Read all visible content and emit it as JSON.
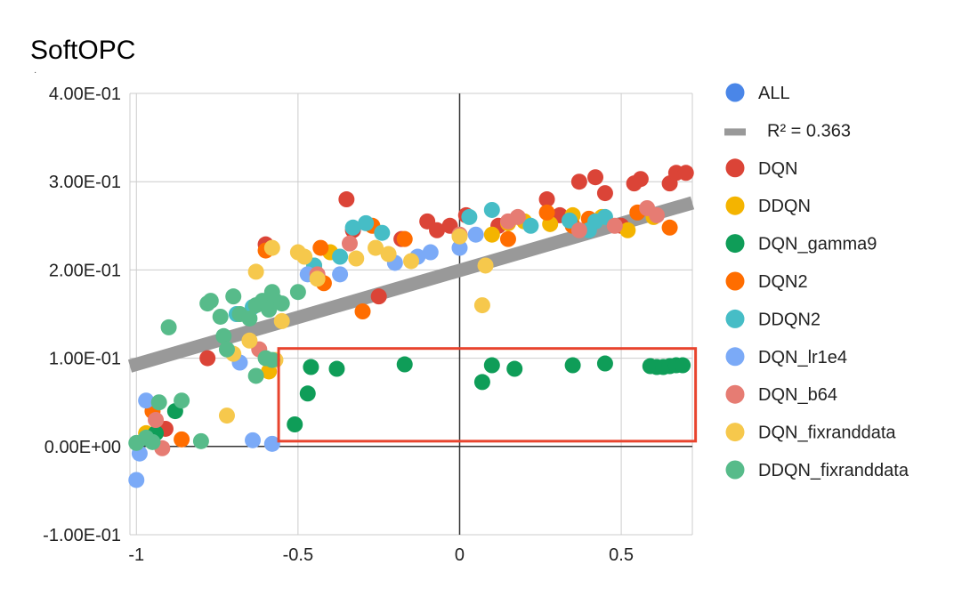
{
  "chart_data": {
    "type": "scatter",
    "title": "SoftOPC",
    "xlabel": "",
    "ylabel": "",
    "xlim": [
      -1.02,
      0.72
    ],
    "ylim": [
      -0.1,
      0.4
    ],
    "x_ticks": [
      -1,
      -0.5,
      0,
      0.5
    ],
    "x_tick_labels": [
      "-1",
      "-0.5",
      "0",
      "0.5"
    ],
    "y_ticks": [
      -0.1,
      0.0,
      0.1,
      0.2,
      0.3,
      0.4
    ],
    "y_tick_labels": [
      "-1.00E-01",
      "0.00E+00",
      "1.00E-01",
      "2.00E-01",
      "3.00E-01",
      "4.00E-01"
    ],
    "grid": true,
    "legend_position": "right",
    "trendline": {
      "label": "R² = 0.363",
      "color": "#999999",
      "x": [
        -1.02,
        0.72
      ],
      "y": [
        0.091,
        0.276
      ]
    },
    "highlight_box": {
      "color": "#e8442e",
      "x_range": [
        -0.56,
        0.73
      ],
      "y_range": [
        0.006,
        0.111
      ]
    },
    "series": [
      {
        "name": "ALL",
        "color": "#4a86e8",
        "points": []
      },
      {
        "name": "DQN",
        "color": "#db4437",
        "points": [
          [
            -0.35,
            0.28
          ],
          [
            -0.33,
            0.245
          ],
          [
            -0.18,
            0.235
          ],
          [
            -0.07,
            0.245
          ],
          [
            -0.03,
            0.25
          ],
          [
            0.02,
            0.262
          ],
          [
            0.12,
            0.25
          ],
          [
            0.27,
            0.28
          ],
          [
            0.31,
            0.262
          ],
          [
            0.37,
            0.3
          ],
          [
            0.42,
            0.305
          ],
          [
            0.45,
            0.287
          ],
          [
            0.5,
            0.25
          ],
          [
            0.54,
            0.298
          ],
          [
            0.56,
            0.303
          ],
          [
            0.65,
            0.298
          ],
          [
            0.67,
            0.31
          ],
          [
            0.7,
            0.31
          ],
          [
            -0.6,
            0.229
          ],
          [
            -0.25,
            0.17
          ],
          [
            -0.78,
            0.1
          ],
          [
            -0.91,
            0.02
          ],
          [
            -0.1,
            0.255
          ]
        ]
      },
      {
        "name": "DDQN",
        "color": "#f4b400",
        "points": [
          [
            -0.59,
            0.085
          ],
          [
            -0.45,
            0.205
          ],
          [
            -0.4,
            0.22
          ],
          [
            0.1,
            0.24
          ],
          [
            0.15,
            0.253
          ],
          [
            0.2,
            0.255
          ],
          [
            0.28,
            0.252
          ],
          [
            0.35,
            0.262
          ],
          [
            0.44,
            0.26
          ],
          [
            0.52,
            0.245
          ],
          [
            0.6,
            0.26
          ],
          [
            -0.97,
            0.015
          ]
        ]
      },
      {
        "name": "DQN_gamma9",
        "color": "#0f9d58",
        "points": [
          [
            -0.51,
            0.025
          ],
          [
            -0.47,
            0.06
          ],
          [
            -0.46,
            0.09
          ],
          [
            -0.38,
            0.088
          ],
          [
            -0.17,
            0.093
          ],
          [
            0.07,
            0.073
          ],
          [
            0.1,
            0.092
          ],
          [
            0.17,
            0.088
          ],
          [
            0.35,
            0.092
          ],
          [
            0.45,
            0.094
          ],
          [
            0.59,
            0.091
          ],
          [
            0.61,
            0.09
          ],
          [
            0.63,
            0.09
          ],
          [
            0.65,
            0.091
          ],
          [
            0.67,
            0.092
          ],
          [
            0.69,
            0.092
          ],
          [
            -0.88,
            0.04
          ],
          [
            -0.94,
            0.015
          ],
          [
            -0.96,
            0.008
          ]
        ]
      },
      {
        "name": "DQN2",
        "color": "#ff6d00",
        "points": [
          [
            -0.6,
            0.222
          ],
          [
            -0.43,
            0.225
          ],
          [
            -0.3,
            0.153
          ],
          [
            -0.27,
            0.25
          ],
          [
            -0.17,
            0.235
          ],
          [
            0.15,
            0.235
          ],
          [
            0.27,
            0.265
          ],
          [
            0.35,
            0.25
          ],
          [
            0.4,
            0.258
          ],
          [
            0.55,
            0.265
          ],
          [
            0.65,
            0.248
          ],
          [
            -0.95,
            0.04
          ],
          [
            -0.86,
            0.008
          ],
          [
            -0.42,
            0.185
          ]
        ]
      },
      {
        "name": "DDQN2",
        "color": "#46bdc6",
        "points": [
          [
            -0.45,
            0.205
          ],
          [
            -0.37,
            0.215
          ],
          [
            -0.33,
            0.248
          ],
          [
            -0.29,
            0.253
          ],
          [
            -0.24,
            0.242
          ],
          [
            0.03,
            0.26
          ],
          [
            0.1,
            0.268
          ],
          [
            0.22,
            0.25
          ],
          [
            0.34,
            0.256
          ],
          [
            0.4,
            0.245
          ],
          [
            0.42,
            0.255
          ],
          [
            0.45,
            0.26
          ],
          [
            -0.69,
            0.15
          ],
          [
            -0.64,
            0.158
          ]
        ]
      },
      {
        "name": "DQN_lr1e4",
        "color": "#7baaf7",
        "points": [
          [
            -1.0,
            -0.038
          ],
          [
            -0.99,
            -0.008
          ],
          [
            -0.97,
            0.052
          ],
          [
            -0.64,
            0.007
          ],
          [
            -0.58,
            0.003
          ],
          [
            -0.68,
            0.095
          ],
          [
            -0.2,
            0.208
          ],
          [
            -0.13,
            0.215
          ],
          [
            -0.09,
            0.22
          ],
          [
            0.0,
            0.225
          ],
          [
            0.05,
            0.24
          ],
          [
            -0.37,
            0.195
          ],
          [
            -0.47,
            0.195
          ]
        ]
      },
      {
        "name": "DQN_b64",
        "color": "#e67c73",
        "points": [
          [
            -0.94,
            0.03
          ],
          [
            -0.92,
            -0.002
          ],
          [
            -0.62,
            0.11
          ],
          [
            -0.44,
            0.195
          ],
          [
            -0.34,
            0.23
          ],
          [
            0.15,
            0.255
          ],
          [
            0.18,
            0.26
          ],
          [
            0.37,
            0.245
          ],
          [
            0.48,
            0.25
          ],
          [
            0.58,
            0.27
          ],
          [
            0.61,
            0.262
          ],
          [
            0.0,
            0.24
          ]
        ]
      },
      {
        "name": "DQN_fixranddata",
        "color": "#f6c84c",
        "points": [
          [
            -0.72,
            0.035
          ],
          [
            -0.65,
            0.12
          ],
          [
            -0.63,
            0.198
          ],
          [
            -0.58,
            0.225
          ],
          [
            -0.55,
            0.142
          ],
          [
            -0.5,
            0.22
          ],
          [
            -0.48,
            0.215
          ],
          [
            -0.44,
            0.19
          ],
          [
            -0.32,
            0.213
          ],
          [
            -0.26,
            0.225
          ],
          [
            -0.22,
            0.218
          ],
          [
            -0.15,
            0.21
          ],
          [
            0.0,
            0.238
          ],
          [
            0.07,
            0.16
          ],
          [
            0.08,
            0.205
          ],
          [
            -0.57,
            0.098
          ],
          [
            -0.7,
            0.105
          ]
        ]
      },
      {
        "name": "DDQN_fixranddata",
        "color": "#57bb8a",
        "points": [
          [
            -1.0,
            0.004
          ],
          [
            -0.97,
            0.01
          ],
          [
            -0.95,
            0.005
          ],
          [
            -0.93,
            0.05
          ],
          [
            -0.9,
            0.135
          ],
          [
            -0.86,
            0.052
          ],
          [
            -0.8,
            0.006
          ],
          [
            -0.78,
            0.162
          ],
          [
            -0.77,
            0.165
          ],
          [
            -0.74,
            0.147
          ],
          [
            -0.73,
            0.125
          ],
          [
            -0.7,
            0.17
          ],
          [
            -0.68,
            0.15
          ],
          [
            -0.65,
            0.145
          ],
          [
            -0.63,
            0.16
          ],
          [
            -0.61,
            0.165
          ],
          [
            -0.59,
            0.155
          ],
          [
            -0.58,
            0.175
          ],
          [
            -0.57,
            0.165
          ],
          [
            -0.55,
            0.162
          ],
          [
            -0.5,
            0.175
          ],
          [
            -0.63,
            0.08
          ],
          [
            -0.6,
            0.1
          ],
          [
            -0.58,
            0.098
          ],
          [
            -0.72,
            0.11
          ]
        ]
      }
    ]
  }
}
